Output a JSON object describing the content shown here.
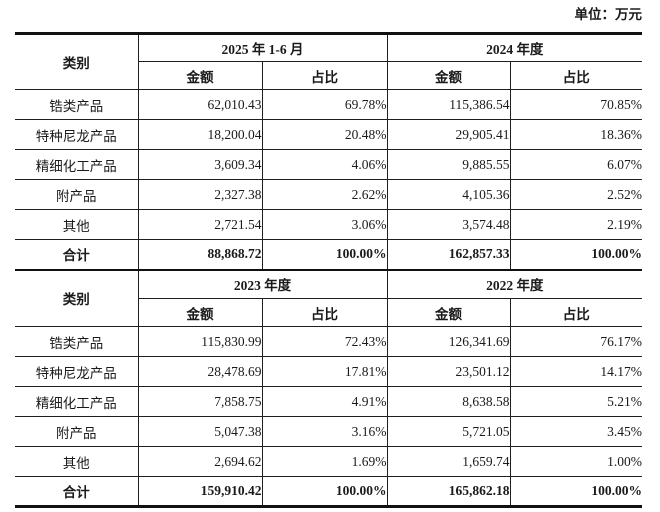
{
  "unit_label": "单位：万元",
  "headers": {
    "category": "类别",
    "amount": "金额",
    "ratio": "占比"
  },
  "tables": [
    {
      "period1": "2025 年 1-6 月",
      "period2": "2024 年度",
      "rows": [
        {
          "label": "锆类产品",
          "values": [
            "62,010.43",
            "69.78%",
            "115,386.54",
            "70.85%"
          ],
          "total": false
        },
        {
          "label": "特种尼龙产品",
          "values": [
            "18,200.04",
            "20.48%",
            "29,905.41",
            "18.36%"
          ],
          "total": false
        },
        {
          "label": "精细化工产品",
          "values": [
            "3,609.34",
            "4.06%",
            "9,885.55",
            "6.07%"
          ],
          "total": false
        },
        {
          "label": "附产品",
          "values": [
            "2,327.38",
            "2.62%",
            "4,105.36",
            "2.52%"
          ],
          "total": false
        },
        {
          "label": "其他",
          "values": [
            "2,721.54",
            "3.06%",
            "3,574.48",
            "2.19%"
          ],
          "total": false
        },
        {
          "label": "合计",
          "values": [
            "88,868.72",
            "100.00%",
            "162,857.33",
            "100.00%"
          ],
          "total": true
        }
      ]
    },
    {
      "period1": "2023 年度",
      "period2": "2022 年度",
      "rows": [
        {
          "label": "锆类产品",
          "values": [
            "115,830.99",
            "72.43%",
            "126,341.69",
            "76.17%"
          ],
          "total": false
        },
        {
          "label": "特种尼龙产品",
          "values": [
            "28,478.69",
            "17.81%",
            "23,501.12",
            "14.17%"
          ],
          "total": false
        },
        {
          "label": "精细化工产品",
          "values": [
            "7,858.75",
            "4.91%",
            "8,638.58",
            "5.21%"
          ],
          "total": false
        },
        {
          "label": "附产品",
          "values": [
            "5,047.38",
            "3.16%",
            "5,721.05",
            "3.45%"
          ],
          "total": false
        },
        {
          "label": "其他",
          "values": [
            "2,694.62",
            "1.69%",
            "1,659.74",
            "1.00%"
          ],
          "total": false
        },
        {
          "label": "合计",
          "values": [
            "159,910.42",
            "100.00%",
            "165,862.18",
            "100.00%"
          ],
          "total": true
        }
      ]
    }
  ]
}
